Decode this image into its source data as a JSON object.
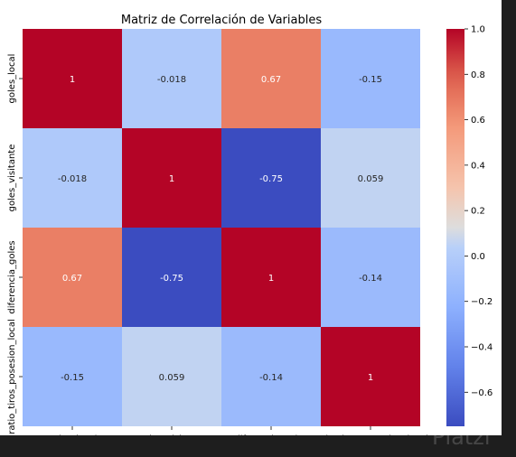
{
  "chart_data": {
    "type": "heatmap",
    "title": "Matriz de Correlación de Variables",
    "variables": [
      "goles_local",
      "goles_visitante",
      "diferencia_goles",
      "ratio_tiros_posesion_local"
    ],
    "matrix": [
      [
        1,
        -0.018,
        0.67,
        -0.15
      ],
      [
        -0.018,
        1,
        -0.75,
        0.059
      ],
      [
        0.67,
        -0.75,
        1,
        -0.14
      ],
      [
        -0.15,
        0.059,
        -0.14,
        1
      ]
    ],
    "cell_labels": [
      [
        "1",
        "-0.018",
        "0.67",
        "-0.15"
      ],
      [
        "-0.018",
        "1",
        "-0.75",
        "0.059"
      ],
      [
        "0.67",
        "-0.75",
        "1",
        "-0.14"
      ],
      [
        "-0.15",
        "0.059",
        "-0.14",
        "1"
      ]
    ],
    "colormap": "coolwarm",
    "colorbar": {
      "range": [
        -0.75,
        1.0
      ],
      "ticks": [
        1.0,
        0.8,
        0.6,
        0.4,
        0.2,
        0.0,
        -0.2,
        -0.4,
        -0.6
      ],
      "tick_labels": [
        "1.0",
        "0.8",
        "0.6",
        "0.4",
        "0.2",
        "0.0",
        "−0.2",
        "−0.4",
        "−0.6"
      ],
      "placement": "right"
    }
  },
  "watermark": "Platzi"
}
